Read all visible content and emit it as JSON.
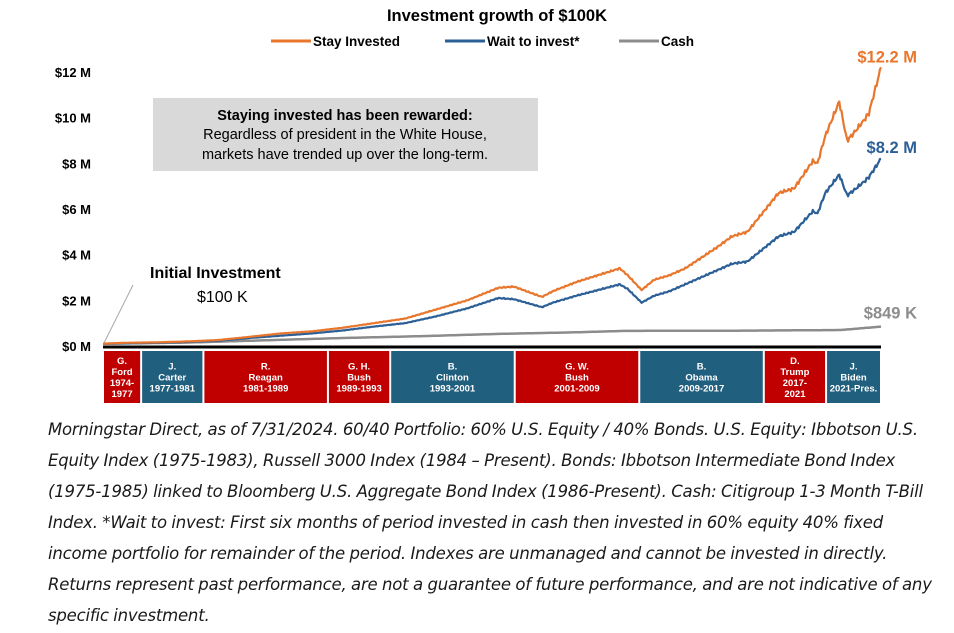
{
  "chart_data": {
    "type": "line",
    "title": "Investment growth of $100K",
    "y_unit": "USD",
    "ylim": [
      0,
      12000000
    ],
    "yticks": [
      {
        "value": 0,
        "label": "$0 M"
      },
      {
        "value": 2000000,
        "label": "$2 M"
      },
      {
        "value": 4000000,
        "label": "$4 M"
      },
      {
        "value": 6000000,
        "label": "$6 M"
      },
      {
        "value": 8000000,
        "label": "$8 M"
      },
      {
        "value": 10000000,
        "label": "$10 M"
      },
      {
        "value": 12000000,
        "label": "$12 M"
      }
    ],
    "xlim": [
      1974.6,
      2024.58
    ],
    "grid": false,
    "legend_position": "top",
    "series": [
      {
        "name": "Stay Invested",
        "color": "#E8762C",
        "end_label": "$12.2 M",
        "x": [
          1974.6,
          1976,
          1978,
          1980,
          1982,
          1984,
          1986,
          1988,
          1990,
          1992,
          1994,
          1996,
          1998,
          2000,
          2001,
          2002.8,
          2003.5,
          2005,
          2007.8,
          2008.3,
          2009.2,
          2010,
          2011,
          2012,
          2014,
          2015,
          2016,
          2018,
          2019,
          2020.2,
          2020.5,
          2021,
          2021.9,
          2022.4,
          2022.8,
          2023.5,
          2023.8,
          2024.58
        ],
        "y": [
          100000,
          140000,
          160000,
          200000,
          260000,
          400000,
          550000,
          640000,
          800000,
          1000000,
          1200000,
          1600000,
          2000000,
          2550000,
          2600000,
          2150000,
          2400000,
          2800000,
          3400000,
          3100000,
          2450000,
          2900000,
          3100000,
          3400000,
          4300000,
          4800000,
          5000000,
          6700000,
          6900000,
          8100000,
          8000000,
          9200000,
          10700000,
          9000000,
          9300000,
          9900000,
          10200000,
          12200000
        ]
      },
      {
        "name": "Wait to invest*",
        "color": "#2B5F96",
        "end_label": "$8.2 M",
        "x": [
          1974.6,
          1976,
          1978,
          1980,
          1982,
          1984,
          1986,
          1988,
          1990,
          1992,
          1994,
          1996,
          1998,
          2000,
          2001,
          2002.8,
          2003.5,
          2005,
          2007.8,
          2008.3,
          2009.2,
          2010,
          2011,
          2012,
          2014,
          2015,
          2016,
          2018,
          2019,
          2020.2,
          2020.5,
          2021,
          2021.9,
          2022.4,
          2022.8,
          2023.5,
          2023.8,
          2024.58
        ],
        "y": [
          100000,
          115000,
          140000,
          180000,
          230000,
          350000,
          450000,
          550000,
          680000,
          850000,
          1000000,
          1300000,
          1650000,
          2100000,
          2050000,
          1700000,
          1900000,
          2200000,
          2700000,
          2500000,
          1900000,
          2200000,
          2400000,
          2700000,
          3300000,
          3600000,
          3700000,
          4800000,
          5000000,
          5900000,
          5800000,
          6700000,
          7500000,
          6600000,
          6800000,
          7200000,
          7400000,
          8200000
        ]
      },
      {
        "name": "Cash",
        "color": "#8C8C8C",
        "end_label": "$849 K",
        "x": [
          1974.6,
          1980,
          1985,
          1990,
          1995,
          2000,
          2005,
          2008,
          2010,
          2015,
          2020,
          2022,
          2024.58
        ],
        "y": [
          100000,
          150000,
          250000,
          350000,
          430000,
          530000,
          600000,
          660000,
          665000,
          670000,
          690000,
          700000,
          849000
        ]
      }
    ],
    "annotations": {
      "box_title": "Staying invested has been rewarded:",
      "box_line1": "Regardless of president in the White House,",
      "box_line2": "markets have trended up over the long-term.",
      "initial_title": "Initial Investment",
      "initial_value": "$100 K"
    },
    "presidents": [
      {
        "lines": [
          "G.",
          "Ford",
          "1974-",
          "1977"
        ],
        "start": 1974.6,
        "end": 1977.05,
        "party": "R"
      },
      {
        "lines": [
          "J.",
          "Carter",
          "1977-1981"
        ],
        "start": 1977.05,
        "end": 1981.05,
        "party": "D"
      },
      {
        "lines": [
          "R.",
          "Reagan",
          "1981-1989"
        ],
        "start": 1981.05,
        "end": 1989.05,
        "party": "R"
      },
      {
        "lines": [
          "G. H.",
          "Bush",
          "1989-1993"
        ],
        "start": 1989.05,
        "end": 1993.05,
        "party": "R"
      },
      {
        "lines": [
          "B.",
          "Clinton",
          "1993-2001"
        ],
        "start": 1993.05,
        "end": 2001.05,
        "party": "D"
      },
      {
        "lines": [
          "G. W.",
          "Bush",
          "2001-2009"
        ],
        "start": 2001.05,
        "end": 2009.05,
        "party": "R"
      },
      {
        "lines": [
          "B.",
          "Obama",
          "2009-2017"
        ],
        "start": 2009.05,
        "end": 2017.05,
        "party": "D"
      },
      {
        "lines": [
          "D.",
          "Trump",
          "2017-",
          "2021"
        ],
        "start": 2017.05,
        "end": 2021.05,
        "party": "R"
      },
      {
        "lines": [
          "J.",
          "Biden",
          "2021-Pres."
        ],
        "start": 2021.05,
        "end": 2024.58,
        "party": "D"
      }
    ],
    "party_colors": {
      "R": "#C00000",
      "D": "#215F7F"
    }
  },
  "footnote": "Morningstar Direct, as of 7/31/2024. 60/40 Portfolio: 60% U.S. Equity / 40% Bonds. U.S. Equity: Ibbotson U.S. Equity Index (1975-1983), Russell 3000 Index (1984 – Present). Bonds: Ibbotson Intermediate Bond Index (1975-1985) linked to Bloomberg U.S. Aggregate Bond Index (1986-Present). Cash: Citigroup 1-3 Month T-Bill Index. *Wait to invest: First six months of period invested in cash then invested in 60% equity 40% fixed income portfolio for remainder of the period. Indexes are unmanaged and cannot be invested in directly. Returns represent past performance, are not a guarantee of future performance, and are not indicative of any specific investment."
}
